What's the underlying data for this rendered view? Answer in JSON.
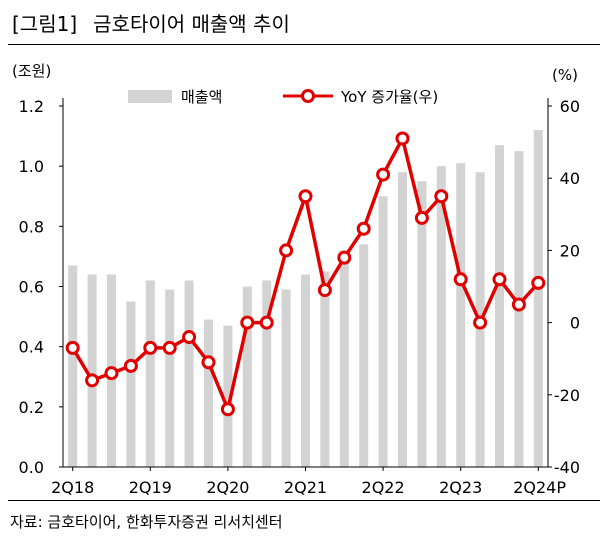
{
  "figure": {
    "label": "[그림1]",
    "title": "금호타이어 매출액 추이",
    "source": "자료: 금호타이어, 한화투자증권 리서치센터"
  },
  "colors": {
    "bar": "#d3d3d3",
    "line": "#e00000",
    "marker_fill": "#ffffff",
    "text": "#000000"
  },
  "chart_data": {
    "type": "bar",
    "combo": "bar + line (dual axis)",
    "categories": [
      "2Q18",
      "3Q18",
      "4Q18",
      "1Q19",
      "2Q19",
      "3Q19",
      "4Q19",
      "1Q20",
      "2Q20",
      "3Q20",
      "4Q20",
      "1Q21",
      "2Q21",
      "3Q21",
      "4Q21",
      "1Q22",
      "2Q22",
      "3Q22",
      "4Q22",
      "1Q23",
      "2Q23",
      "3Q23",
      "4Q23",
      "1Q24",
      "2Q24P"
    ],
    "x_tick_labels": [
      {
        "index": 0,
        "label": "2Q18"
      },
      {
        "index": 4,
        "label": "2Q19"
      },
      {
        "index": 8,
        "label": "2Q20"
      },
      {
        "index": 12,
        "label": "2Q21"
      },
      {
        "index": 16,
        "label": "2Q22"
      },
      {
        "index": 20,
        "label": "2Q23"
      },
      {
        "index": 24,
        "label": "2Q24P"
      }
    ],
    "series": [
      {
        "name": "매출액",
        "type": "bar",
        "axis": "left",
        "values": [
          0.67,
          0.64,
          0.64,
          0.55,
          0.62,
          0.59,
          0.62,
          0.49,
          0.47,
          0.6,
          0.62,
          0.59,
          0.64,
          0.65,
          0.72,
          0.74,
          0.9,
          0.98,
          0.95,
          1.0,
          1.01,
          0.98,
          1.07,
          1.05,
          1.12
        ]
      },
      {
        "name": "YoY 증가율(우)",
        "type": "line",
        "axis": "right",
        "values": [
          -7,
          -16,
          -14,
          -12,
          -7,
          -7,
          -4,
          -11,
          -24,
          0,
          0,
          20,
          35,
          9,
          18,
          26,
          41,
          51,
          29,
          35,
          12,
          0,
          12,
          5,
          11
        ]
      }
    ],
    "left_axis": {
      "unit_label": "(조원)",
      "min": 0.0,
      "max": 1.2,
      "ticks": [
        "0.0",
        "0.2",
        "0.4",
        "0.6",
        "0.8",
        "1.0",
        "1.2"
      ]
    },
    "right_axis": {
      "unit_label": "(%)",
      "min": -40,
      "max": 60,
      "ticks": [
        "-40",
        "-20",
        "0",
        "20",
        "40",
        "60"
      ]
    },
    "legend_position": "top",
    "grid": false
  }
}
